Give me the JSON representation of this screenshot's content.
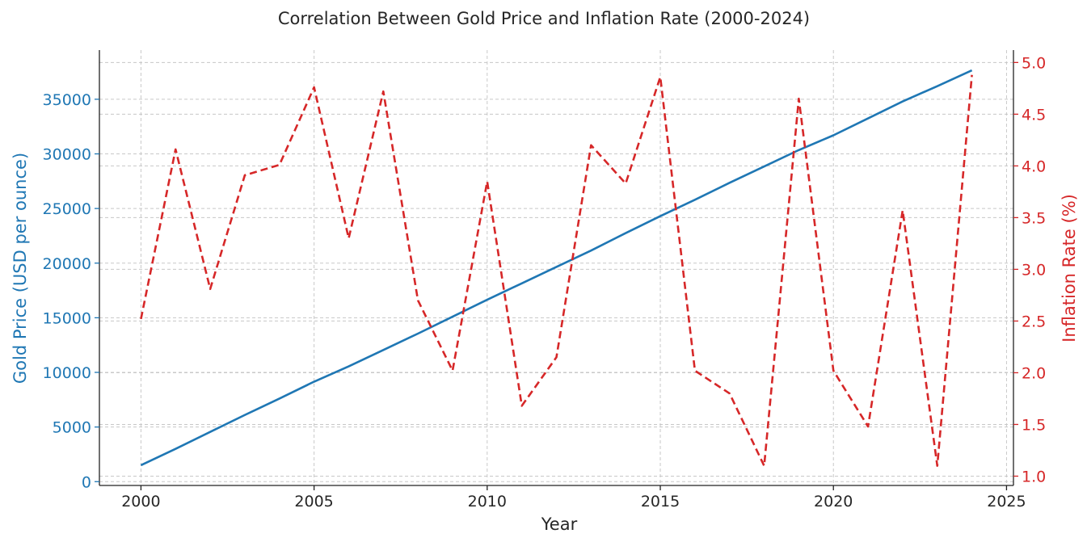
{
  "chart_data": {
    "type": "line",
    "title": "Correlation Between Gold Price and Inflation Rate (2000-2024)",
    "xlabel": "Year",
    "x": [
      2000,
      2001,
      2002,
      2003,
      2004,
      2005,
      2006,
      2007,
      2008,
      2009,
      2010,
      2011,
      2012,
      2013,
      2014,
      2015,
      2016,
      2017,
      2018,
      2019,
      2020,
      2021,
      2022,
      2023,
      2024
    ],
    "xlim": [
      1998.8,
      2025.2
    ],
    "xticks": [
      2000,
      2005,
      2010,
      2015,
      2020,
      2025
    ],
    "grid": true,
    "series": [
      {
        "name": "Gold Price",
        "axis": "left",
        "color": "#1f77b4",
        "style": "solid",
        "ylabel": "Gold Price (USD per ounce)",
        "ylim": [
          -350,
          39500
        ],
        "yticks": [
          0,
          5000,
          10000,
          15000,
          20000,
          25000,
          30000,
          35000
        ],
        "values": [
          1500,
          3000,
          4550,
          6100,
          7600,
          9150,
          10550,
          12050,
          13550,
          15100,
          16650,
          18150,
          19650,
          21150,
          22750,
          24300,
          25800,
          27350,
          28850,
          30350,
          31700,
          33250,
          34800,
          36200,
          37650
        ]
      },
      {
        "name": "Inflation Rate",
        "axis": "right",
        "color": "#d62728",
        "style": "dashed",
        "ylabel": "Inflation Rate (%)",
        "ylim": [
          0.91,
          5.12
        ],
        "yticks": [
          "1.0",
          "1.5",
          "2.0",
          "2.5",
          "3.0",
          "3.5",
          "4.0",
          "4.5",
          "5.0"
        ],
        "values": [
          2.52,
          4.16,
          2.81,
          3.91,
          4.01,
          4.76,
          3.3,
          4.72,
          2.7,
          2.02,
          3.85,
          1.68,
          2.15,
          4.2,
          3.83,
          4.86,
          2.02,
          1.8,
          1.1,
          4.65,
          2.02,
          1.48,
          3.57,
          1.1,
          4.88
        ]
      }
    ]
  }
}
